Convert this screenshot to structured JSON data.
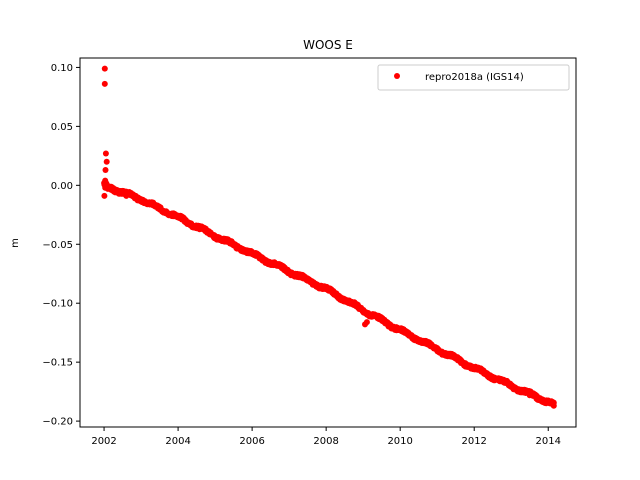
{
  "chart_data": {
    "type": "scatter",
    "title": "WOOS E",
    "xlabel": "",
    "ylabel": "m",
    "xlim": [
      2001.35,
      2014.75
    ],
    "ylim": [
      -0.205,
      0.108
    ],
    "xticks": [
      2002,
      2004,
      2006,
      2008,
      2010,
      2012,
      2014
    ],
    "xtick_labels": [
      "2002",
      "2004",
      "2006",
      "2008",
      "2010",
      "2012",
      "2014"
    ],
    "yticks": [
      0.1,
      0.05,
      0.0,
      -0.05,
      -0.1,
      -0.15,
      -0.2
    ],
    "ytick_labels": [
      "0.10",
      "0.05",
      "0.00",
      "−0.05",
      "−0.10",
      "−0.15",
      "−0.20"
    ],
    "grid": false,
    "legend_position": "top-right",
    "series": [
      {
        "name": "repro2018a (IGS14)",
        "color": "#ff0000",
        "marker": "circle",
        "trend": {
          "x": [
            2002.0,
            2003.0,
            2004.0,
            2005.0,
            2006.0,
            2007.0,
            2008.0,
            2009.0,
            2010.0,
            2011.0,
            2012.0,
            2013.0,
            2014.15
          ],
          "y": [
            0.0,
            -0.012,
            -0.027,
            -0.043,
            -0.058,
            -0.073,
            -0.088,
            -0.106,
            -0.123,
            -0.139,
            -0.155,
            -0.17,
            -0.186
          ]
        },
        "points": [
          [
            2002.02,
            0.099
          ],
          [
            2002.02,
            0.086
          ],
          [
            2002.05,
            0.027
          ],
          [
            2002.07,
            0.02
          ],
          [
            2002.04,
            0.013
          ],
          [
            2002.03,
            0.004
          ],
          [
            2002.02,
            0.001
          ],
          [
            2002.03,
            -0.002
          ],
          [
            2002.01,
            -0.009
          ],
          [
            2002.1,
            -0.003
          ],
          [
            2002.3,
            -0.006
          ],
          [
            2002.6,
            -0.009
          ],
          [
            2003.0,
            -0.012
          ],
          [
            2003.5,
            -0.019
          ],
          [
            2004.0,
            -0.027
          ],
          [
            2004.5,
            -0.035
          ],
          [
            2005.0,
            -0.043
          ],
          [
            2005.5,
            -0.051
          ],
          [
            2006.0,
            -0.058
          ],
          [
            2006.5,
            -0.066
          ],
          [
            2007.0,
            -0.073
          ],
          [
            2007.5,
            -0.081
          ],
          [
            2008.0,
            -0.088
          ],
          [
            2008.5,
            -0.097
          ],
          [
            2009.0,
            -0.106
          ],
          [
            2009.05,
            -0.118
          ],
          [
            2009.1,
            -0.116
          ],
          [
            2009.5,
            -0.114
          ],
          [
            2010.0,
            -0.123
          ],
          [
            2010.5,
            -0.131
          ],
          [
            2011.0,
            -0.139
          ],
          [
            2011.5,
            -0.147
          ],
          [
            2012.0,
            -0.155
          ],
          [
            2012.5,
            -0.163
          ],
          [
            2013.0,
            -0.17
          ],
          [
            2013.5,
            -0.178
          ],
          [
            2014.0,
            -0.184
          ],
          [
            2014.15,
            -0.187
          ]
        ]
      }
    ]
  }
}
